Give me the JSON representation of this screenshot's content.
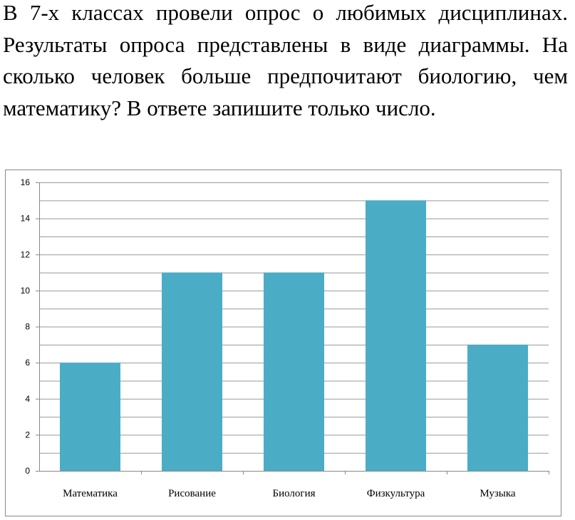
{
  "question": "В 7-х классах провели опрос о любимых дисциплинах. Результаты опроса представлены в виде диаграммы. На сколько человек больше предпочитают биологию, чем математику? В ответе запишите только число.",
  "chart_data": {
    "type": "bar",
    "title": "",
    "xlabel": "",
    "ylabel": "",
    "categories": [
      "Математика",
      "Рисование",
      "Биология",
      "Физкультура",
      "Музыка"
    ],
    "values": [
      6,
      11,
      11,
      15,
      7
    ],
    "ylim": [
      0,
      16
    ],
    "yticks": [
      0,
      2,
      4,
      6,
      8,
      10,
      12,
      14,
      16
    ],
    "minor_grid_step": 1,
    "grid": true,
    "legend": "none",
    "bar_color": "#4BACC6"
  }
}
